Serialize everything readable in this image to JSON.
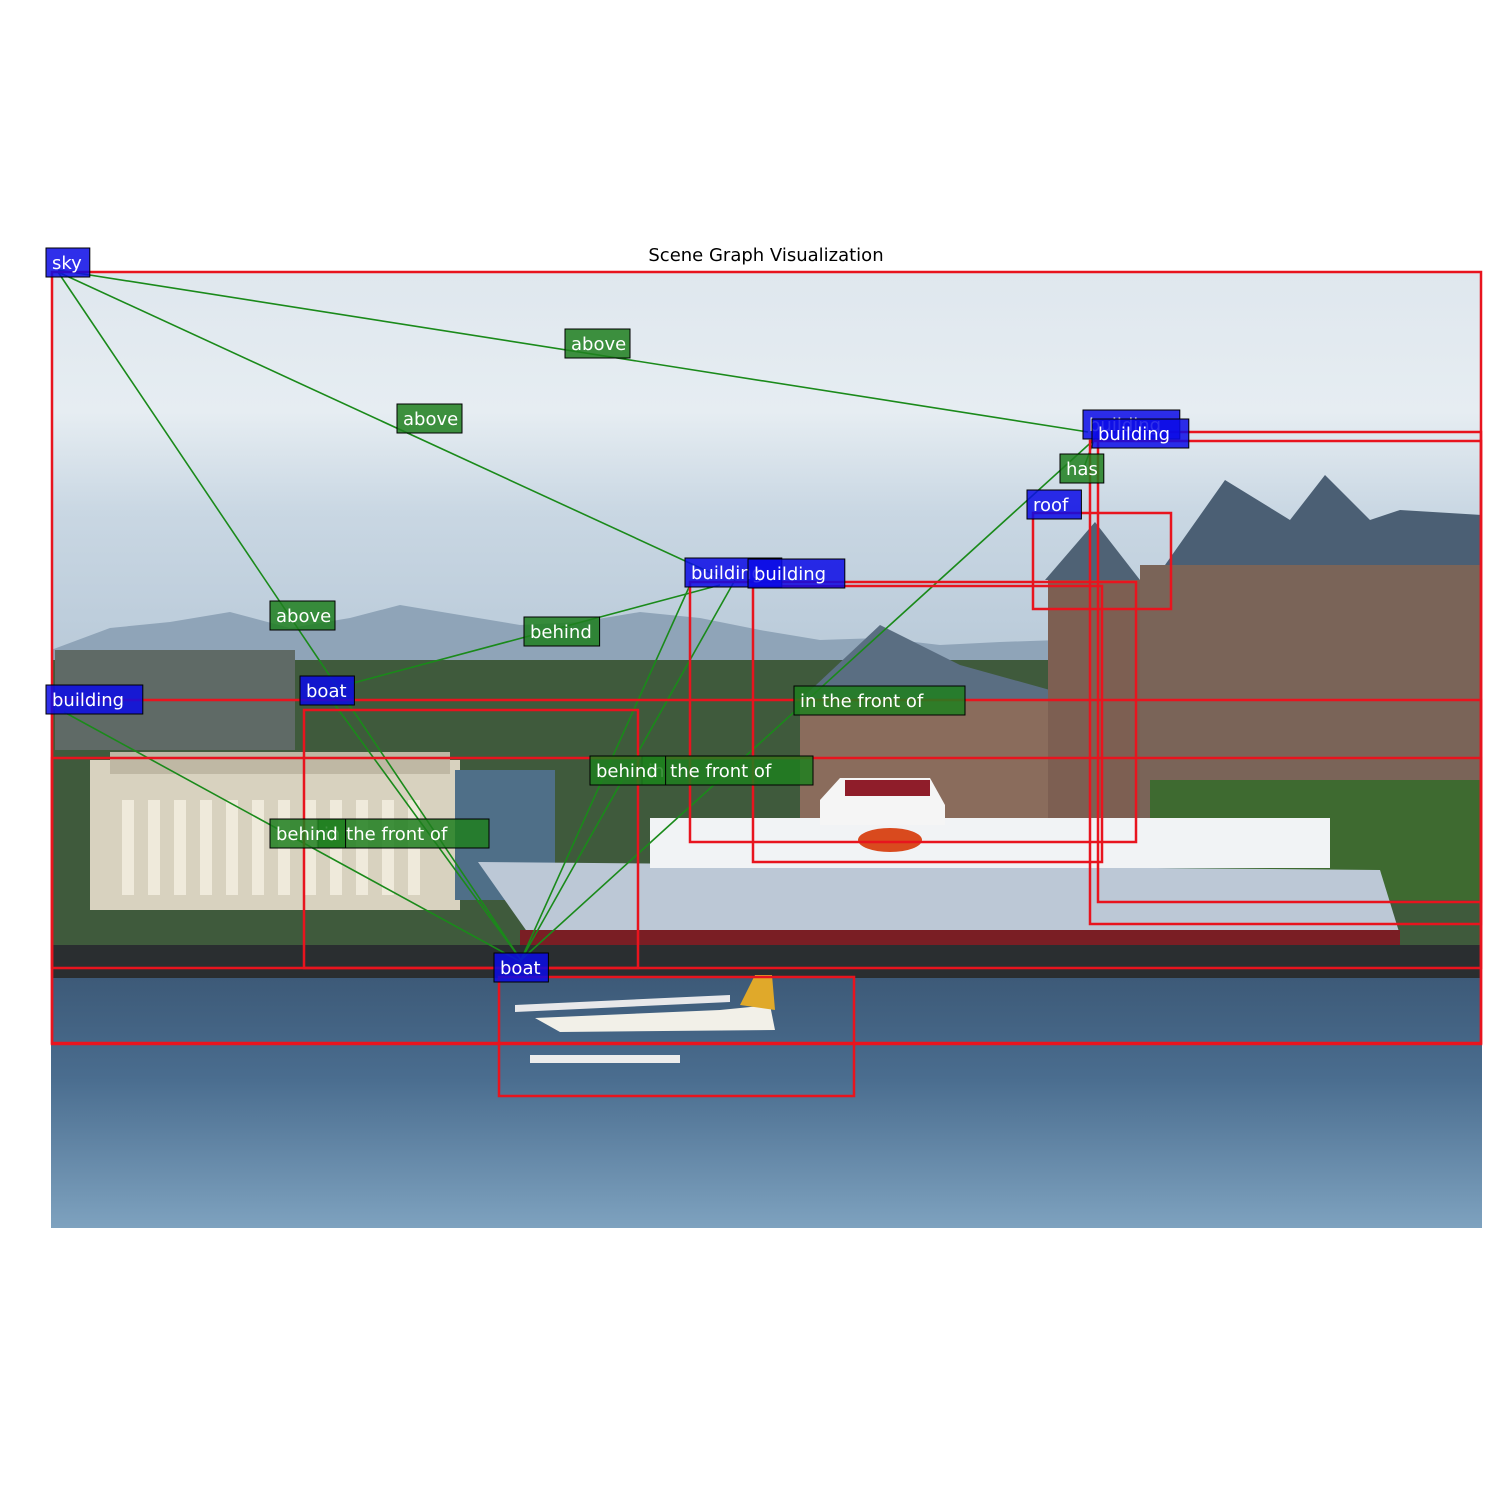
{
  "title": "Scene Graph Visualization",
  "colors": {
    "box": "#e8141e",
    "edge": "#1a8a1a",
    "node_label_bg": "#0a0ae6",
    "relation_label_bg": "#1f7f1f"
  },
  "nodes": [
    {
      "id": "n_sky",
      "label": "sky"
    },
    {
      "id": "n_building_right_a",
      "label": "building"
    },
    {
      "id": "n_building_right_b",
      "label": "building"
    },
    {
      "id": "n_roof",
      "label": "roof"
    },
    {
      "id": "n_building_mid_a",
      "label": "building"
    },
    {
      "id": "n_building_mid_b",
      "label": "building"
    },
    {
      "id": "n_building_left",
      "label": "building"
    },
    {
      "id": "n_boat_top",
      "label": "boat"
    },
    {
      "id": "n_boat_bottom",
      "label": "boat"
    }
  ],
  "relations": [
    {
      "id": "r_sky_above_building_right",
      "label": "above"
    },
    {
      "id": "r_sky_above_building_mid",
      "label": "above"
    },
    {
      "id": "r_sky_above_boat",
      "label": "above"
    },
    {
      "id": "r_building_has_roof",
      "label": "has"
    },
    {
      "id": "r_boat_behind_building_mid",
      "label": "behind"
    },
    {
      "id": "r_boat_front_building_right",
      "label": "in the front of"
    },
    {
      "id": "r_boat_front_building_mid",
      "label": "in the front of"
    },
    {
      "id": "r_boat_behind_building_mid_2",
      "label": "behind"
    },
    {
      "id": "r_building_front_boat",
      "label": "in the front of"
    },
    {
      "id": "r_building_behind_boat",
      "label": "behind"
    }
  ]
}
